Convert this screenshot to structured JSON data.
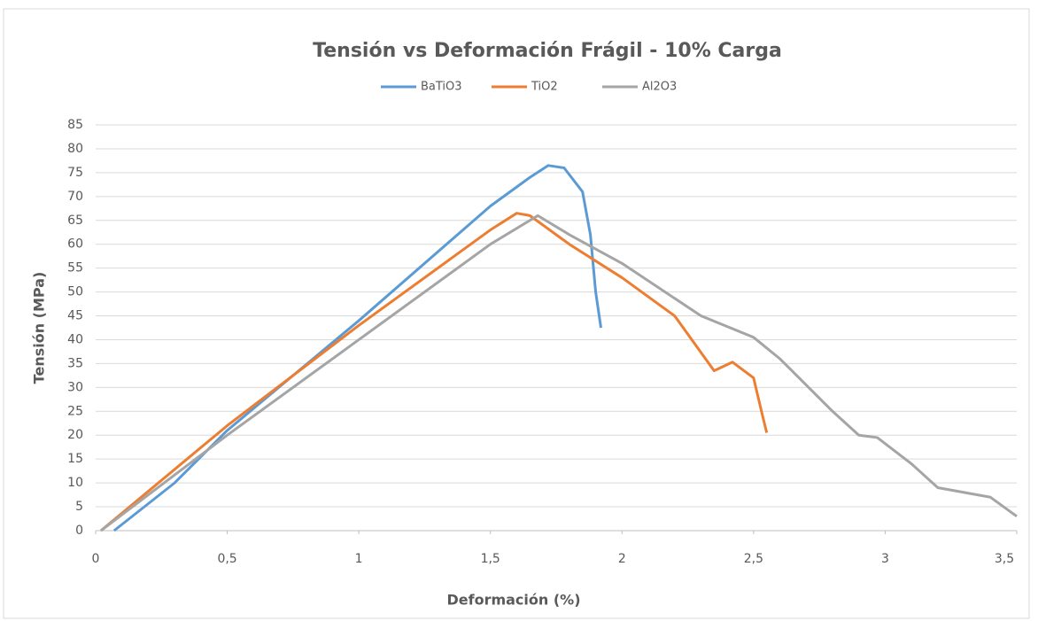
{
  "chart_data": {
    "type": "line",
    "title": "Tensión vs Deformación Frágil - 10% Carga",
    "x_label": "Deformación (%)",
    "y_label": "Tensión (MPa)",
    "xlim": [
      0,
      3.5
    ],
    "xticks": [
      0,
      {
        "value": 0.5,
        "label": "0,5"
      },
      1,
      {
        "value": 1.5,
        "label": "1,5"
      },
      2,
      {
        "value": 2.5,
        "label": "2,5"
      },
      3,
      {
        "value": 3.5,
        "label": "3,5"
      }
    ],
    "ylim": [
      0,
      85
    ],
    "yticks": [
      0,
      5,
      10,
      15,
      20,
      25,
      30,
      35,
      40,
      45,
      50,
      55,
      60,
      65,
      70,
      75,
      80,
      85
    ],
    "grid": true,
    "legend": "top",
    "series": [
      {
        "name": "BaTiO3",
        "color": "#5b9bd5",
        "x": [
          0.07,
          0.3,
          0.5,
          1,
          1.5,
          1.65,
          1.72,
          1.78,
          1.85,
          1.88,
          1.9,
          1.92
        ],
        "values": [
          0,
          10,
          21,
          44,
          68,
          74,
          76.5,
          76,
          71,
          62,
          50,
          42.5
        ]
      },
      {
        "name": "TiO2",
        "color": "#ed7d31",
        "x": [
          0.02,
          0.5,
          1,
          1.5,
          1.6,
          1.65,
          1.8,
          2,
          2.2,
          2.35,
          2.42,
          2.5,
          2.53,
          2.55
        ],
        "values": [
          0,
          22,
          43,
          63,
          66.5,
          66,
          60,
          53,
          45,
          33.5,
          35.3,
          32,
          25,
          20.5
        ]
      },
      {
        "name": "Al2O3",
        "color": "#a5a5a5",
        "x": [
          0.02,
          0.5,
          1,
          1.5,
          1.68,
          1.8,
          2,
          2.3,
          2.5,
          2.6,
          2.8,
          2.9,
          2.97,
          3.1,
          3.2,
          3.4,
          3.5
        ],
        "values": [
          0,
          20,
          40,
          60,
          66,
          62,
          56,
          45,
          40.5,
          36,
          25,
          20,
          19.5,
          14,
          9,
          7,
          3
        ]
      }
    ]
  }
}
